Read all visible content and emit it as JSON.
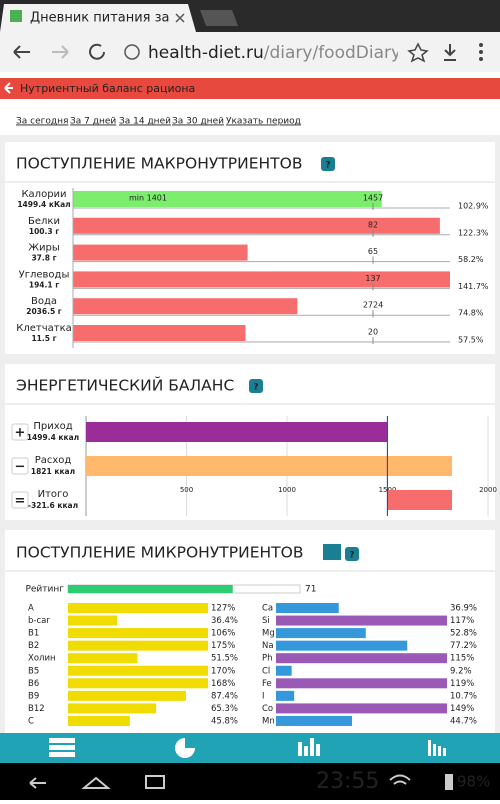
{
  "browser": {
    "tab_title": "Дневник питания за",
    "url_host": "health-diet.ru",
    "url_path": "/diary/foodDiaryRepo"
  },
  "header": {
    "title": "Нутриентный баланс рациона"
  },
  "periods": [
    "За сегодня",
    "За 7 дней",
    "За 14 дней",
    "За 30 дней",
    "Указать период"
  ],
  "macro": {
    "title": "ПОСТУПЛЕНИЕ МАКРОНУТРИЕНТОВ",
    "help": "?",
    "rows": [
      {
        "name": "Калории",
        "amount": "1499.4 кКал",
        "min_label": "min 1401",
        "norm": 1457,
        "percent": 102.9,
        "percent_label": "102.9%"
      },
      {
        "name": "Белки",
        "amount": "100.3 г",
        "norm": 82,
        "percent": 122.3,
        "percent_label": "122.3%"
      },
      {
        "name": "Жиры",
        "amount": "37.8 г",
        "norm": 65,
        "percent": 58.2,
        "percent_label": "58.2%"
      },
      {
        "name": "Углеводы",
        "amount": "194.1 г",
        "norm": 137,
        "percent": 141.7,
        "percent_label": "141.7%"
      },
      {
        "name": "Вода",
        "amount": "2036.5 г",
        "norm": 2724,
        "percent": 74.8,
        "percent_label": "74.8%"
      },
      {
        "name": "Клетчатка",
        "amount": "11.5 г",
        "norm": 20,
        "percent": 57.5,
        "percent_label": "57.5%"
      }
    ]
  },
  "energy": {
    "title": "ЭНЕРГЕТИЧЕСКИЙ БАЛАНС",
    "help": "?",
    "xlim": [
      0,
      2000
    ],
    "xticks": [
      500,
      1000,
      1500,
      2000
    ],
    "rows": [
      {
        "sign": "+",
        "name": "Приход",
        "value": 1499.4,
        "label": "1499.4 ккал"
      },
      {
        "sign": "−",
        "name": "Расход",
        "value": 1821,
        "label": "1821 ккал"
      },
      {
        "sign": "=",
        "name": "Итого",
        "value": -321.6,
        "label": "-321.6 ккал"
      }
    ]
  },
  "micro": {
    "title": "ПОСТУПЛЕНИЕ МИКРОНУТРИЕНТОВ",
    "help": "?",
    "rating_label": "Рейтинг",
    "rating": 71,
    "left": [
      {
        "name": "A",
        "percent": 127,
        "label": "127%"
      },
      {
        "name": "b-car",
        "percent": 36.4,
        "label": "36.4%"
      },
      {
        "name": "B1",
        "percent": 106,
        "label": "106%"
      },
      {
        "name": "B2",
        "percent": 175,
        "label": "175%"
      },
      {
        "name": "Холин",
        "percent": 51.5,
        "label": "51.5%"
      },
      {
        "name": "B5",
        "percent": 170,
        "label": "170%"
      },
      {
        "name": "B6",
        "percent": 168,
        "label": "168%"
      },
      {
        "name": "B9",
        "percent": 87.4,
        "label": "87.4%"
      },
      {
        "name": "B12",
        "percent": 65.3,
        "label": "65.3%"
      },
      {
        "name": "C",
        "percent": 45.8,
        "label": "45.8%"
      }
    ],
    "right": [
      {
        "name": "Ca",
        "percent": 36.9,
        "label": "36.9%"
      },
      {
        "name": "Si",
        "percent": 117,
        "label": "117%"
      },
      {
        "name": "Mg",
        "percent": 52.8,
        "label": "52.8%"
      },
      {
        "name": "Na",
        "percent": 77.2,
        "label": "77.2%"
      },
      {
        "name": "Ph",
        "percent": 115,
        "label": "115%"
      },
      {
        "name": "Cl",
        "percent": 9.2,
        "label": "9.2%"
      },
      {
        "name": "Fe",
        "percent": 119,
        "label": "119%"
      },
      {
        "name": "I",
        "percent": 10.7,
        "label": "10.7%"
      },
      {
        "name": "Co",
        "percent": 149,
        "label": "149%"
      },
      {
        "name": "Mn",
        "percent": 44.7,
        "label": "44.7%"
      }
    ]
  },
  "status": {
    "time": "23:55",
    "battery": "98%"
  }
}
